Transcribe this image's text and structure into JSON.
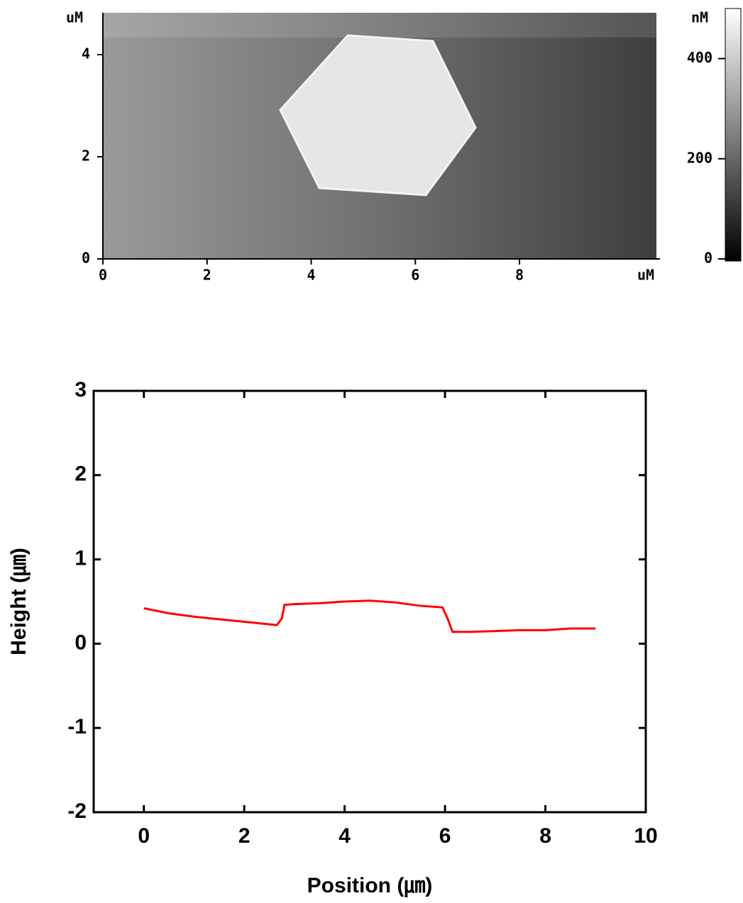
{
  "chart_data": [
    {
      "type": "image",
      "x_unit": "uM",
      "y_unit": "uM",
      "colorbar_unit": "nM",
      "xlim": [
        0,
        10.63
      ],
      "ylim": [
        0,
        4.82
      ],
      "xticks": [
        0,
        2,
        4,
        6,
        8
      ],
      "yticks": [
        0,
        2,
        4
      ],
      "colorbar_lim": [
        0,
        500
      ],
      "colorbar_ticks": [
        0,
        200,
        400
      ]
    },
    {
      "type": "line",
      "xlabel": "Position (㎛)",
      "ylabel": "Height (㎛)",
      "color": "#ff0000",
      "x": [
        0,
        0.5,
        1,
        1.5,
        2,
        2.5,
        2.65,
        2.75,
        2.8,
        3,
        3.5,
        4,
        4.5,
        5,
        5.5,
        5.95,
        6.05,
        6.15,
        6.5,
        7,
        7.5,
        8,
        8.5,
        9
      ],
      "values": [
        0.42,
        0.36,
        0.32,
        0.29,
        0.26,
        0.23,
        0.22,
        0.3,
        0.46,
        0.47,
        0.48,
        0.5,
        0.51,
        0.49,
        0.45,
        0.43,
        0.3,
        0.14,
        0.14,
        0.15,
        0.16,
        0.16,
        0.18,
        0.18
      ],
      "xlim": [
        -1,
        10
      ],
      "ylim": [
        -2,
        3
      ],
      "xticks": [
        0,
        2,
        4,
        6,
        8,
        10
      ],
      "yticks": [
        -2,
        -1,
        0,
        1,
        2,
        3
      ]
    }
  ]
}
